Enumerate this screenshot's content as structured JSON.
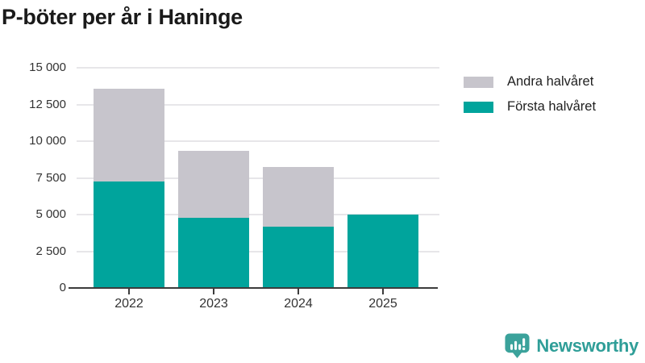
{
  "title": "P-böter per år i Haninge",
  "legend": [
    {
      "label": "Andra halvåret",
      "color": "#c7c5cc"
    },
    {
      "label": "Första halvåret",
      "color": "#00a49c"
    }
  ],
  "chart_data": {
    "type": "bar",
    "stacked": true,
    "title": "P-böter per år i Haninge",
    "categories": [
      "2022",
      "2023",
      "2024",
      "2025"
    ],
    "series": [
      {
        "name": "Första halvåret",
        "color": "#00a49c",
        "values": [
          7250,
          4800,
          4200,
          5000
        ]
      },
      {
        "name": "Andra halvåret",
        "color": "#c7c5cc",
        "values": [
          6300,
          4550,
          4050,
          0
        ]
      }
    ],
    "xlabel": "",
    "ylabel": "",
    "ylim": [
      0,
      15000
    ],
    "yticks": [
      0,
      2500,
      5000,
      7500,
      10000,
      12500,
      15000
    ],
    "ytick_labels": [
      "0",
      "2 500",
      "5 000",
      "7 500",
      "10 000",
      "12 500",
      "15 000"
    ],
    "grid": true,
    "legend_position": "top-right"
  },
  "footer": {
    "brand": "Newsworthy"
  }
}
